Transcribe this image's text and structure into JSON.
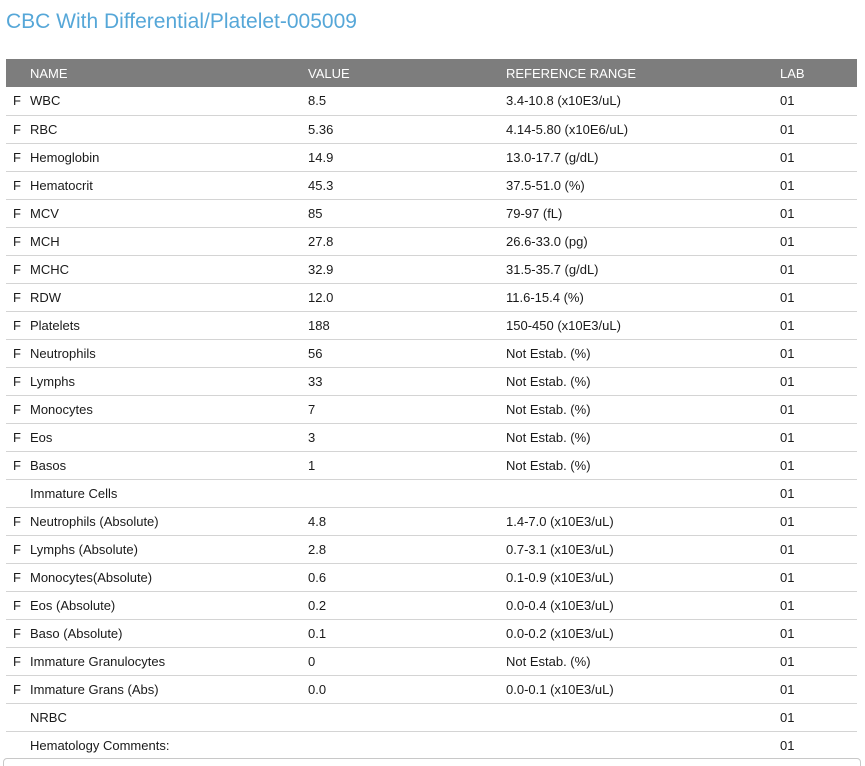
{
  "page": {
    "title": "CBC With Differential/Platelet-005009"
  },
  "colors": {
    "title_accent": "#56A7D8",
    "table_header_bg": "#7D7D7D",
    "row_border": "#D4D4D4"
  },
  "table": {
    "columns": {
      "flag": "",
      "name": "NAME",
      "value": "VALUE",
      "range": "REFERENCE RANGE",
      "lab": "LAB"
    },
    "rows": [
      {
        "flag": "F",
        "name": "WBC",
        "value": "8.5",
        "range": "3.4-10.8 (x10E3/uL)",
        "lab": "01"
      },
      {
        "flag": "F",
        "name": "RBC",
        "value": "5.36",
        "range": "4.14-5.80 (x10E6/uL)",
        "lab": "01"
      },
      {
        "flag": "F",
        "name": "Hemoglobin",
        "value": "14.9",
        "range": "13.0-17.7 (g/dL)",
        "lab": "01"
      },
      {
        "flag": "F",
        "name": "Hematocrit",
        "value": "45.3",
        "range": "37.5-51.0 (%)",
        "lab": "01"
      },
      {
        "flag": "F",
        "name": "MCV",
        "value": "85",
        "range": "79-97 (fL)",
        "lab": "01"
      },
      {
        "flag": "F",
        "name": "MCH",
        "value": "27.8",
        "range": "26.6-33.0 (pg)",
        "lab": "01"
      },
      {
        "flag": "F",
        "name": "MCHC",
        "value": "32.9",
        "range": "31.5-35.7 (g/dL)",
        "lab": "01"
      },
      {
        "flag": "F",
        "name": "RDW",
        "value": "12.0",
        "range": "11.6-15.4 (%)",
        "lab": "01"
      },
      {
        "flag": "F",
        "name": "Platelets",
        "value": "188",
        "range": "150-450 (x10E3/uL)",
        "lab": "01"
      },
      {
        "flag": "F",
        "name": "Neutrophils",
        "value": "56",
        "range": "Not Estab. (%)",
        "lab": "01"
      },
      {
        "flag": "F",
        "name": "Lymphs",
        "value": "33",
        "range": "Not Estab. (%)",
        "lab": "01"
      },
      {
        "flag": "F",
        "name": "Monocytes",
        "value": "7",
        "range": "Not Estab. (%)",
        "lab": "01"
      },
      {
        "flag": "F",
        "name": "Eos",
        "value": "3",
        "range": "Not Estab. (%)",
        "lab": "01"
      },
      {
        "flag": "F",
        "name": "Basos",
        "value": "1",
        "range": "Not Estab. (%)",
        "lab": "01"
      },
      {
        "flag": "",
        "name": "Immature Cells",
        "value": "",
        "range": "",
        "lab": "01"
      },
      {
        "flag": "F",
        "name": "Neutrophils (Absolute)",
        "value": "4.8",
        "range": "1.4-7.0 (x10E3/uL)",
        "lab": "01"
      },
      {
        "flag": "F",
        "name": "Lymphs (Absolute)",
        "value": "2.8",
        "range": "0.7-3.1 (x10E3/uL)",
        "lab": "01"
      },
      {
        "flag": "F",
        "name": "Monocytes(Absolute)",
        "value": "0.6",
        "range": "0.1-0.9 (x10E3/uL)",
        "lab": "01"
      },
      {
        "flag": "F",
        "name": "Eos (Absolute)",
        "value": "0.2",
        "range": "0.0-0.4 (x10E3/uL)",
        "lab": "01"
      },
      {
        "flag": "F",
        "name": "Baso (Absolute)",
        "value": "0.1",
        "range": "0.0-0.2 (x10E3/uL)",
        "lab": "01"
      },
      {
        "flag": "F",
        "name": "Immature Granulocytes",
        "value": "0",
        "range": "Not Estab. (%)",
        "lab": "01"
      },
      {
        "flag": "F",
        "name": "Immature Grans (Abs)",
        "value": "0.0",
        "range": "0.0-0.1 (x10E3/uL)",
        "lab": "01"
      },
      {
        "flag": "",
        "name": "NRBC",
        "value": "",
        "range": "",
        "lab": "01"
      },
      {
        "flag": "",
        "name": "Hematology Comments:",
        "value": "",
        "range": "",
        "lab": "01"
      }
    ]
  }
}
